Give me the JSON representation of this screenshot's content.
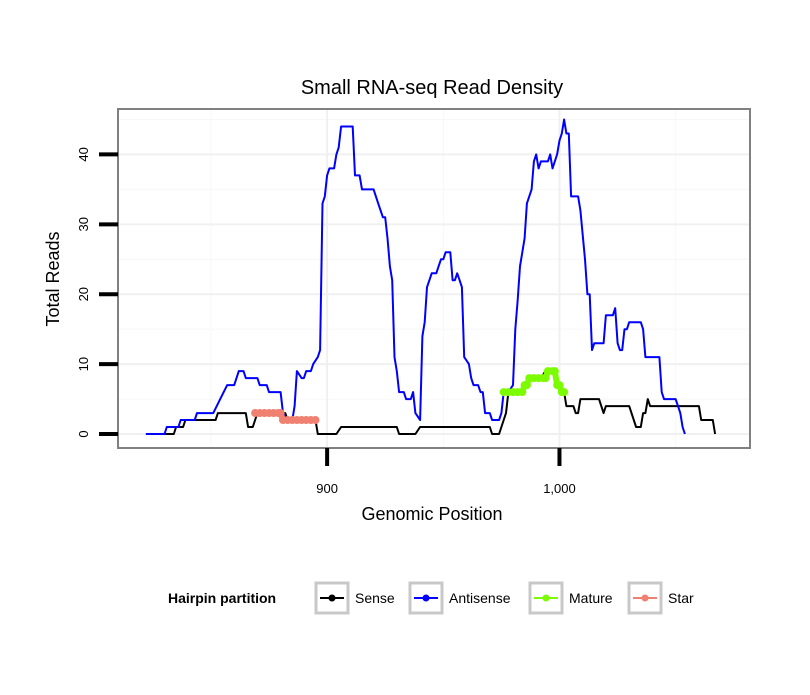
{
  "chart_data": {
    "type": "line",
    "title": "Small RNA-seq Read Density",
    "xlabel": "Genomic Position",
    "ylabel": "Total Reads",
    "xlim": [
      810,
      1082
    ],
    "ylim": [
      -2,
      46.5
    ],
    "x_ticks": [
      900,
      1000
    ],
    "x_tick_labels": [
      "900",
      "1,000"
    ],
    "y_ticks": [
      0,
      10,
      20,
      30,
      40
    ],
    "y_tick_labels": [
      "0",
      "10",
      "20",
      "30",
      "40"
    ],
    "grid": true,
    "legend": {
      "title": "Hairpin partition",
      "position": "bottom",
      "entries": [
        "Sense",
        "Antisense",
        "Mature",
        "Star"
      ]
    },
    "series": [
      {
        "name": "Sense",
        "color": "#000000",
        "points": [
          [
            822,
            0
          ],
          [
            834,
            0
          ],
          [
            835,
            1
          ],
          [
            838,
            1
          ],
          [
            839,
            2
          ],
          [
            852,
            2
          ],
          [
            853,
            3
          ],
          [
            864,
            3
          ],
          [
            865,
            3
          ],
          [
            866,
            1
          ],
          [
            868,
            1
          ],
          [
            869,
            2
          ],
          [
            870,
            3
          ],
          [
            875,
            3
          ],
          [
            876,
            3
          ],
          [
            878,
            3
          ],
          [
            880,
            3
          ],
          [
            882,
            3
          ],
          [
            883,
            2
          ],
          [
            885,
            2
          ],
          [
            887,
            2
          ],
          [
            890,
            2
          ],
          [
            893,
            2
          ],
          [
            895,
            2
          ],
          [
            896,
            0
          ],
          [
            904,
            0
          ],
          [
            906,
            1
          ],
          [
            930,
            1
          ],
          [
            931,
            0
          ],
          [
            938,
            0
          ],
          [
            940,
            1
          ],
          [
            970,
            1
          ],
          [
            971,
            0
          ],
          [
            974,
            0
          ],
          [
            975,
            1
          ],
          [
            976,
            2
          ],
          [
            977,
            3
          ],
          [
            978,
            6
          ],
          [
            980,
            6
          ],
          [
            984,
            6
          ],
          [
            986,
            7
          ],
          [
            988,
            8
          ],
          [
            992,
            8
          ],
          [
            994,
            9
          ],
          [
            997,
            9
          ],
          [
            998,
            8
          ],
          [
            999,
            7
          ],
          [
            1000,
            7
          ],
          [
            1002,
            6
          ],
          [
            1003,
            4
          ],
          [
            1006,
            4
          ],
          [
            1007,
            3
          ],
          [
            1008,
            3
          ],
          [
            1009,
            5
          ],
          [
            1017,
            5
          ],
          [
            1018,
            4
          ],
          [
            1019,
            3
          ],
          [
            1020,
            4
          ],
          [
            1030,
            4
          ],
          [
            1033,
            1
          ],
          [
            1035,
            1
          ],
          [
            1036,
            3
          ],
          [
            1037,
            3
          ],
          [
            1038,
            5
          ],
          [
            1039,
            4
          ],
          [
            1060,
            4
          ],
          [
            1061,
            2
          ],
          [
            1066,
            2
          ],
          [
            1067,
            0
          ]
        ]
      },
      {
        "name": "Antisense",
        "color": "#0000ff",
        "points": [
          [
            822,
            0
          ],
          [
            830,
            0
          ],
          [
            831,
            1
          ],
          [
            836,
            1
          ],
          [
            837,
            2
          ],
          [
            843,
            2
          ],
          [
            844,
            3
          ],
          [
            851,
            3
          ],
          [
            854,
            5
          ],
          [
            857,
            7
          ],
          [
            860,
            7
          ],
          [
            862,
            9
          ],
          [
            864,
            9
          ],
          [
            865,
            8
          ],
          [
            870,
            8
          ],
          [
            871,
            7
          ],
          [
            874,
            7
          ],
          [
            875,
            6
          ],
          [
            880,
            6
          ],
          [
            881,
            3
          ],
          [
            883,
            2
          ],
          [
            885,
            2
          ],
          [
            886,
            4
          ],
          [
            887,
            9
          ],
          [
            889,
            8
          ],
          [
            890,
            8
          ],
          [
            891,
            9
          ],
          [
            893,
            9
          ],
          [
            894,
            10
          ],
          [
            896,
            11
          ],
          [
            897,
            12
          ],
          [
            898,
            33
          ],
          [
            899,
            34
          ],
          [
            900,
            37
          ],
          [
            901,
            38
          ],
          [
            903,
            38
          ],
          [
            904,
            40
          ],
          [
            905,
            41
          ],
          [
            906,
            44
          ],
          [
            911,
            44
          ],
          [
            912,
            37
          ],
          [
            914,
            37
          ],
          [
            915,
            35
          ],
          [
            920,
            35
          ],
          [
            921,
            34
          ],
          [
            922,
            33
          ],
          [
            924,
            31
          ],
          [
            925,
            31
          ],
          [
            926,
            28
          ],
          [
            927,
            24
          ],
          [
            928,
            22
          ],
          [
            929,
            11
          ],
          [
            930,
            9
          ],
          [
            931,
            6
          ],
          [
            933,
            6
          ],
          [
            934,
            5
          ],
          [
            936,
            5
          ],
          [
            937,
            6
          ],
          [
            938,
            3
          ],
          [
            940,
            2
          ],
          [
            941,
            14
          ],
          [
            942,
            16
          ],
          [
            943,
            21
          ],
          [
            944,
            22
          ],
          [
            945,
            23
          ],
          [
            947,
            23
          ],
          [
            948,
            24
          ],
          [
            949,
            25
          ],
          [
            950,
            25
          ],
          [
            951,
            26
          ],
          [
            953,
            26
          ],
          [
            954,
            22
          ],
          [
            955,
            22
          ],
          [
            956,
            23
          ],
          [
            957,
            22
          ],
          [
            958,
            21
          ],
          [
            959,
            11
          ],
          [
            961,
            10
          ],
          [
            962,
            8
          ],
          [
            963,
            7
          ],
          [
            965,
            7
          ],
          [
            966,
            6
          ],
          [
            967,
            6
          ],
          [
            968,
            3
          ],
          [
            970,
            3
          ],
          [
            971,
            2
          ],
          [
            974,
            2
          ],
          [
            975,
            3
          ],
          [
            976,
            6
          ],
          [
            978,
            6
          ],
          [
            980,
            7
          ],
          [
            981,
            15
          ],
          [
            982,
            19
          ],
          [
            983,
            24
          ],
          [
            985,
            28
          ],
          [
            986,
            33
          ],
          [
            988,
            35
          ],
          [
            989,
            39
          ],
          [
            990,
            40
          ],
          [
            991,
            38
          ],
          [
            992,
            39
          ],
          [
            995,
            39
          ],
          [
            996,
            40
          ],
          [
            997,
            38
          ],
          [
            998,
            39
          ],
          [
            999,
            40
          ],
          [
            1000,
            42
          ],
          [
            1001,
            43
          ],
          [
            1002,
            45
          ],
          [
            1003,
            43
          ],
          [
            1004,
            43
          ],
          [
            1005,
            34
          ],
          [
            1008,
            34
          ],
          [
            1009,
            32
          ],
          [
            1011,
            25
          ],
          [
            1012,
            20
          ],
          [
            1013,
            20
          ],
          [
            1014,
            12
          ],
          [
            1015,
            13
          ],
          [
            1019,
            13
          ],
          [
            1020,
            17
          ],
          [
            1023,
            17
          ],
          [
            1024,
            18
          ],
          [
            1025,
            13
          ],
          [
            1026,
            12
          ],
          [
            1027,
            12
          ],
          [
            1028,
            15
          ],
          [
            1029,
            15
          ],
          [
            1030,
            16
          ],
          [
            1035,
            16
          ],
          [
            1036,
            15
          ],
          [
            1037,
            11
          ],
          [
            1043,
            11
          ],
          [
            1044,
            6
          ],
          [
            1045,
            5
          ],
          [
            1050,
            5
          ],
          [
            1051,
            4
          ],
          [
            1052,
            3
          ],
          [
            1053,
            1
          ],
          [
            1054,
            0
          ]
        ]
      },
      {
        "name": "Mature",
        "color": "#7cfc00",
        "points": [
          [
            976,
            6
          ],
          [
            978,
            6
          ],
          [
            980,
            6
          ],
          [
            982,
            6
          ],
          [
            984,
            6
          ],
          [
            985,
            7
          ],
          [
            986,
            7
          ],
          [
            987,
            8
          ],
          [
            989,
            8
          ],
          [
            991,
            8
          ],
          [
            993,
            8
          ],
          [
            994,
            8
          ],
          [
            995,
            9
          ],
          [
            997,
            9
          ],
          [
            998,
            9
          ],
          [
            999,
            7
          ],
          [
            1000,
            7
          ],
          [
            1001,
            6
          ],
          [
            1002,
            6
          ]
        ]
      },
      {
        "name": "Star",
        "color": "#f08070",
        "points": [
          [
            869,
            3
          ],
          [
            871,
            3
          ],
          [
            873,
            3
          ],
          [
            875,
            3
          ],
          [
            877,
            3
          ],
          [
            879,
            3
          ],
          [
            880,
            3
          ],
          [
            881,
            2
          ],
          [
            883,
            2
          ],
          [
            885,
            2
          ],
          [
            887,
            2
          ],
          [
            889,
            2
          ],
          [
            891,
            2
          ],
          [
            893,
            2
          ],
          [
            895,
            2
          ]
        ]
      }
    ]
  }
}
